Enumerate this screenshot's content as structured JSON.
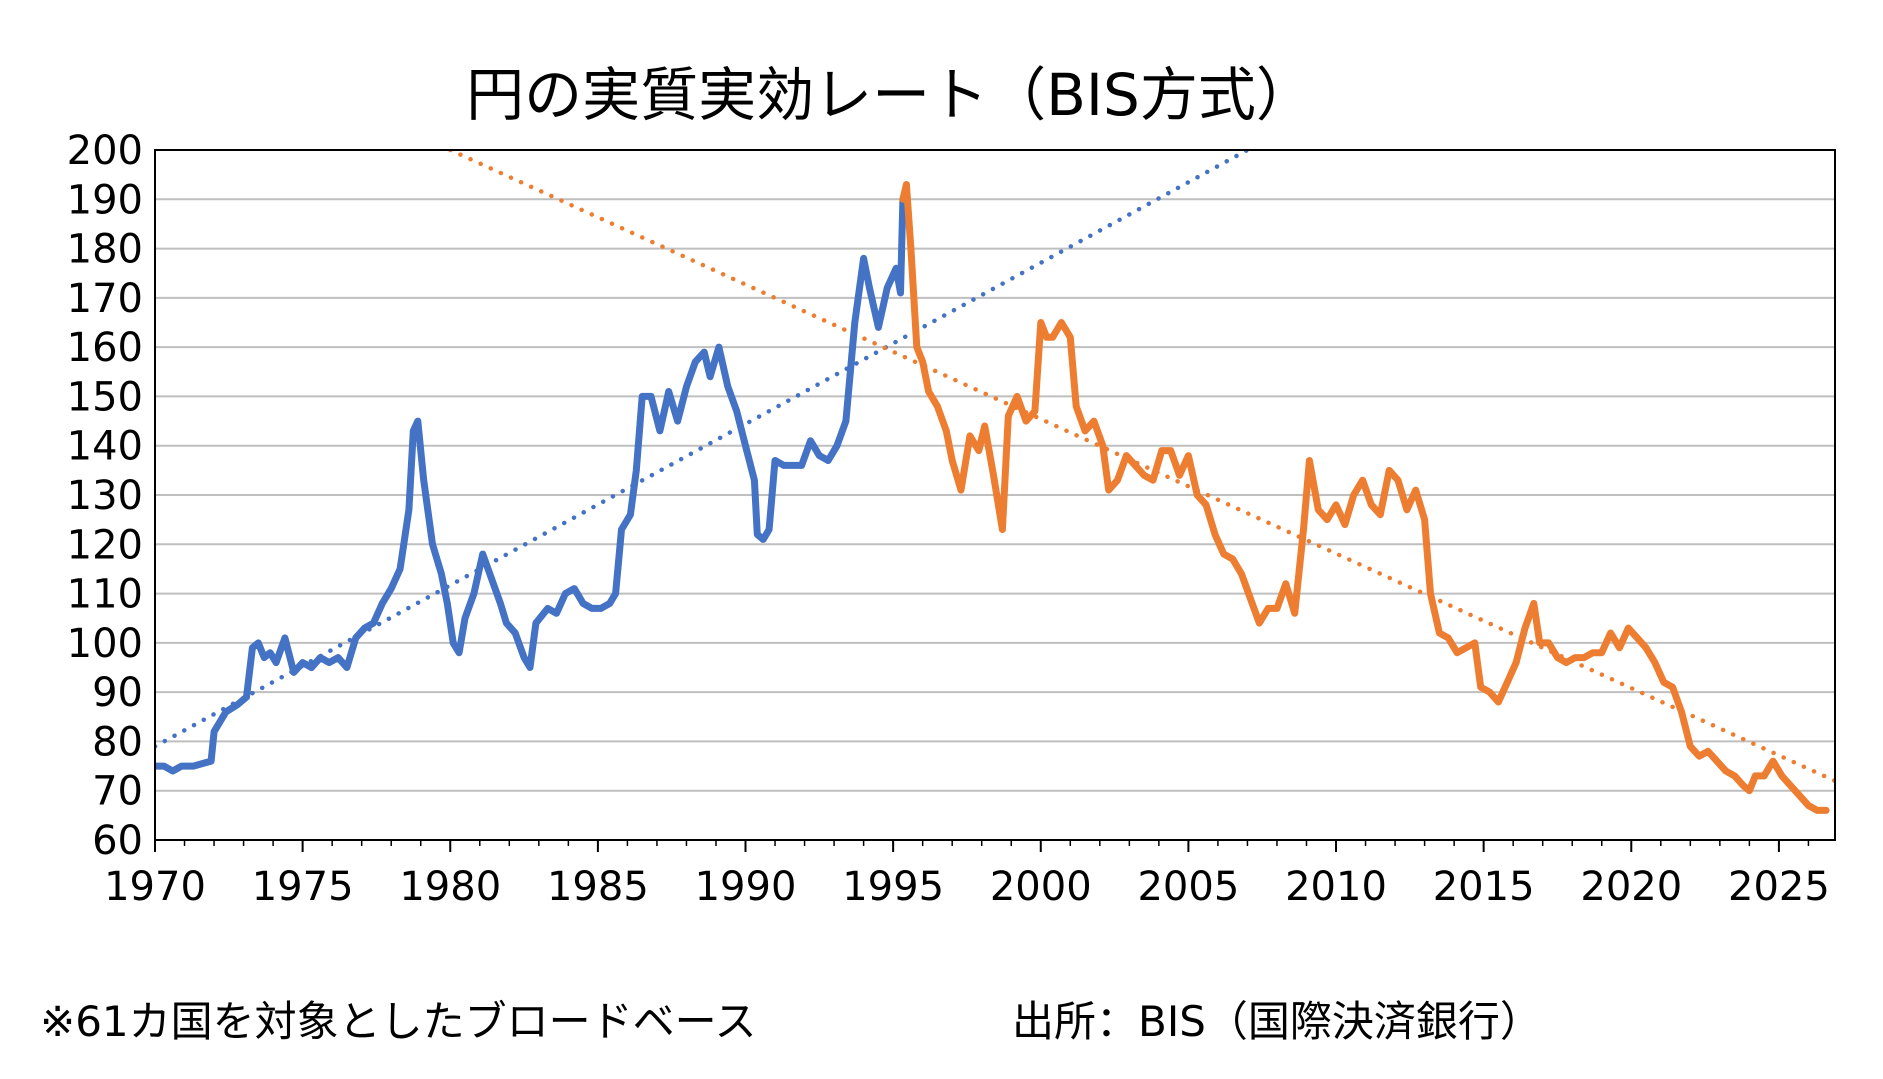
{
  "chart_data": {
    "type": "line",
    "title": "円の実質実効レート（BIS方式）",
    "xlabel": "",
    "ylabel": "",
    "xlim": [
      1970,
      2026.9
    ],
    "ylim": [
      60,
      200
    ],
    "yticks": [
      60,
      70,
      80,
      90,
      100,
      110,
      120,
      130,
      140,
      150,
      160,
      170,
      180,
      190,
      200
    ],
    "xticks": [
      1970,
      1975,
      1980,
      1985,
      1990,
      1995,
      2000,
      2005,
      2010,
      2015,
      2020,
      2025
    ],
    "grid": "horizontal",
    "legend": "none",
    "series": [
      {
        "color": "#4472C4",
        "style": "solid",
        "points": [
          [
            1970.0,
            75
          ],
          [
            1970.3,
            75
          ],
          [
            1970.6,
            74
          ],
          [
            1970.9,
            75
          ],
          [
            1971.3,
            75
          ],
          [
            1971.6,
            75.5
          ],
          [
            1971.9,
            76
          ],
          [
            1972.0,
            82
          ],
          [
            1972.4,
            86
          ],
          [
            1972.8,
            87.5
          ],
          [
            1973.1,
            89
          ],
          [
            1973.3,
            99
          ],
          [
            1973.5,
            100
          ],
          [
            1973.7,
            97
          ],
          [
            1973.9,
            98
          ],
          [
            1974.1,
            96
          ],
          [
            1974.4,
            101
          ],
          [
            1974.7,
            94
          ],
          [
            1975.0,
            96
          ],
          [
            1975.3,
            95
          ],
          [
            1975.6,
            97
          ],
          [
            1975.9,
            96
          ],
          [
            1976.2,
            97
          ],
          [
            1976.5,
            95
          ],
          [
            1976.8,
            101
          ],
          [
            1977.1,
            103
          ],
          [
            1977.4,
            104
          ],
          [
            1977.7,
            108
          ],
          [
            1978.0,
            111
          ],
          [
            1978.3,
            115
          ],
          [
            1978.6,
            127
          ],
          [
            1978.75,
            143
          ],
          [
            1978.9,
            145
          ],
          [
            1979.1,
            133
          ],
          [
            1979.4,
            120
          ],
          [
            1979.7,
            114
          ],
          [
            1979.9,
            108
          ],
          [
            1980.1,
            100
          ],
          [
            1980.3,
            98
          ],
          [
            1980.5,
            105
          ],
          [
            1980.8,
            110
          ],
          [
            1981.1,
            118
          ],
          [
            1981.4,
            113
          ],
          [
            1981.7,
            108
          ],
          [
            1981.9,
            104
          ],
          [
            1982.2,
            102
          ],
          [
            1982.5,
            97
          ],
          [
            1982.7,
            95
          ],
          [
            1982.9,
            104
          ],
          [
            1983.3,
            107
          ],
          [
            1983.6,
            106
          ],
          [
            1983.9,
            110
          ],
          [
            1984.2,
            111
          ],
          [
            1984.5,
            108
          ],
          [
            1984.8,
            107
          ],
          [
            1985.1,
            107
          ],
          [
            1985.4,
            108
          ],
          [
            1985.6,
            110
          ],
          [
            1985.8,
            123
          ],
          [
            1986.1,
            126
          ],
          [
            1986.3,
            135
          ],
          [
            1986.5,
            150
          ],
          [
            1986.8,
            150
          ],
          [
            1987.1,
            143
          ],
          [
            1987.4,
            151
          ],
          [
            1987.7,
            145
          ],
          [
            1988.0,
            152
          ],
          [
            1988.3,
            157
          ],
          [
            1988.6,
            159
          ],
          [
            1988.8,
            154
          ],
          [
            1989.1,
            160
          ],
          [
            1989.4,
            152
          ],
          [
            1989.7,
            147
          ],
          [
            1990.0,
            140
          ],
          [
            1990.3,
            133
          ],
          [
            1990.4,
            122
          ],
          [
            1990.6,
            121
          ],
          [
            1990.8,
            123
          ],
          [
            1991.0,
            137
          ],
          [
            1991.3,
            136
          ],
          [
            1991.6,
            136
          ],
          [
            1991.9,
            136
          ],
          [
            1992.2,
            141
          ],
          [
            1992.5,
            138
          ],
          [
            1992.8,
            137
          ],
          [
            1993.1,
            140
          ],
          [
            1993.4,
            145
          ],
          [
            1993.7,
            165
          ],
          [
            1994.0,
            178
          ],
          [
            1994.2,
            172
          ],
          [
            1994.5,
            164
          ],
          [
            1994.8,
            172
          ],
          [
            1995.1,
            176
          ],
          [
            1995.25,
            171
          ],
          [
            1995.33,
            190
          ]
        ]
      },
      {
        "color": "#ED7D31",
        "style": "solid",
        "points": [
          [
            1995.33,
            190
          ],
          [
            1995.45,
            193
          ],
          [
            1995.6,
            180
          ],
          [
            1995.8,
            160
          ],
          [
            1996.0,
            157
          ],
          [
            1996.2,
            151
          ],
          [
            1996.5,
            148
          ],
          [
            1996.8,
            143
          ],
          [
            1997.0,
            137
          ],
          [
            1997.3,
            131
          ],
          [
            1997.6,
            142
          ],
          [
            1997.9,
            139
          ],
          [
            1998.1,
            144
          ],
          [
            1998.4,
            134
          ],
          [
            1998.7,
            123
          ],
          [
            1998.9,
            146
          ],
          [
            1999.2,
            150
          ],
          [
            1999.5,
            145
          ],
          [
            1999.8,
            147
          ],
          [
            2000.0,
            165
          ],
          [
            2000.2,
            162
          ],
          [
            2000.4,
            162
          ],
          [
            2000.7,
            165
          ],
          [
            2001.0,
            162
          ],
          [
            2001.2,
            148
          ],
          [
            2001.5,
            143
          ],
          [
            2001.8,
            145
          ],
          [
            2002.1,
            140
          ],
          [
            2002.3,
            131
          ],
          [
            2002.6,
            133
          ],
          [
            2002.9,
            138
          ],
          [
            2003.2,
            136
          ],
          [
            2003.5,
            134
          ],
          [
            2003.8,
            133
          ],
          [
            2004.1,
            139
          ],
          [
            2004.4,
            139
          ],
          [
            2004.7,
            134
          ],
          [
            2005.0,
            138
          ],
          [
            2005.3,
            130
          ],
          [
            2005.6,
            128
          ],
          [
            2005.9,
            122
          ],
          [
            2006.2,
            118
          ],
          [
            2006.5,
            117
          ],
          [
            2006.8,
            114
          ],
          [
            2007.1,
            109
          ],
          [
            2007.4,
            104
          ],
          [
            2007.7,
            107
          ],
          [
            2008.0,
            107
          ],
          [
            2008.3,
            112
          ],
          [
            2008.6,
            106
          ],
          [
            2008.9,
            123
          ],
          [
            2009.1,
            137
          ],
          [
            2009.4,
            127
          ],
          [
            2009.7,
            125
          ],
          [
            2010.0,
            128
          ],
          [
            2010.3,
            124
          ],
          [
            2010.6,
            130
          ],
          [
            2010.9,
            133
          ],
          [
            2011.2,
            128
          ],
          [
            2011.5,
            126
          ],
          [
            2011.8,
            135
          ],
          [
            2012.1,
            133
          ],
          [
            2012.4,
            127
          ],
          [
            2012.7,
            131
          ],
          [
            2013.0,
            125
          ],
          [
            2013.2,
            110
          ],
          [
            2013.5,
            102
          ],
          [
            2013.8,
            101
          ],
          [
            2014.1,
            98
          ],
          [
            2014.4,
            99
          ],
          [
            2014.7,
            100
          ],
          [
            2014.9,
            91
          ],
          [
            2015.2,
            90
          ],
          [
            2015.5,
            88
          ],
          [
            2015.8,
            92
          ],
          [
            2016.1,
            96
          ],
          [
            2016.4,
            103
          ],
          [
            2016.7,
            108
          ],
          [
            2016.9,
            100
          ],
          [
            2017.2,
            100
          ],
          [
            2017.5,
            97
          ],
          [
            2017.8,
            96
          ],
          [
            2018.1,
            97
          ],
          [
            2018.4,
            97
          ],
          [
            2018.7,
            98
          ],
          [
            2019.0,
            98
          ],
          [
            2019.3,
            102
          ],
          [
            2019.6,
            99
          ],
          [
            2019.9,
            103
          ],
          [
            2020.2,
            101
          ],
          [
            2020.5,
            99
          ],
          [
            2020.8,
            96
          ],
          [
            2021.1,
            92
          ],
          [
            2021.4,
            91
          ],
          [
            2021.7,
            86
          ],
          [
            2022.0,
            79
          ],
          [
            2022.3,
            77
          ],
          [
            2022.6,
            78
          ],
          [
            2022.9,
            76
          ],
          [
            2023.2,
            74
          ],
          [
            2023.5,
            73
          ],
          [
            2023.8,
            71
          ],
          [
            2024.0,
            70
          ],
          [
            2024.2,
            73
          ],
          [
            2024.5,
            73
          ],
          [
            2024.8,
            76
          ],
          [
            2025.1,
            73
          ],
          [
            2025.4,
            71
          ],
          [
            2025.7,
            69
          ],
          [
            2026.0,
            67
          ],
          [
            2026.3,
            66
          ],
          [
            2026.6,
            66
          ]
        ]
      },
      {
        "color": "#4472C4",
        "style": "dotted",
        "points": [
          [
            1970.0,
            79
          ],
          [
            2007.0,
            200
          ]
        ]
      },
      {
        "color": "#ED7D31",
        "style": "dotted",
        "points": [
          [
            1980.0,
            200
          ],
          [
            2026.9,
            72
          ]
        ]
      }
    ]
  },
  "notes": {
    "left": "※61カ国を対象としたブロードベース",
    "right": "出所：BIS（国際決済銀行）"
  }
}
